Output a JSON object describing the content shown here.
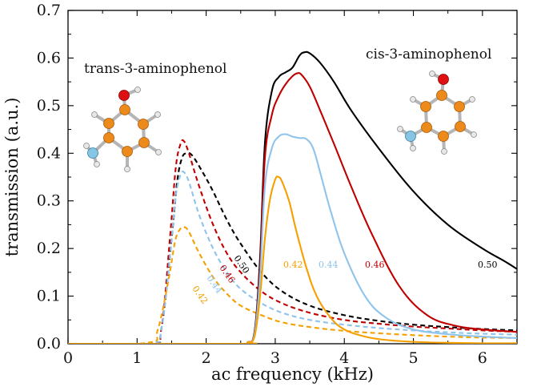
{
  "chart_data": {
    "type": "line",
    "title": "",
    "xlabel": "ac frequency (kHz)",
    "ylabel": "transmission (a.u.)",
    "xlim": [
      0,
      6.5
    ],
    "ylim": [
      0,
      0.7
    ],
    "xticks": [
      "0",
      "1",
      "2",
      "3",
      "4",
      "5",
      "6"
    ],
    "yticks": [
      "0.0",
      "0.1",
      "0.2",
      "0.3",
      "0.4",
      "0.5",
      "0.6",
      "0.7"
    ],
    "grid": false,
    "annotations": {
      "trans": "trans-3-aminophenol",
      "cis": "cis-3-aminophenol"
    },
    "series": [
      {
        "name": "trans 0.50",
        "label": "0.50",
        "isomer": "trans",
        "style": "dashed",
        "color": "#000000",
        "x": [
          0.0,
          1.2,
          1.35,
          1.5,
          1.58,
          1.65,
          1.72,
          1.8,
          1.95,
          2.1,
          2.3,
          2.5,
          2.8,
          3.1,
          3.5,
          4.0,
          4.5,
          5.0,
          5.5,
          6.0,
          6.5
        ],
        "y": [
          0.0,
          0.002,
          0.03,
          0.22,
          0.34,
          0.39,
          0.4,
          0.395,
          0.36,
          0.32,
          0.26,
          0.21,
          0.15,
          0.11,
          0.08,
          0.06,
          0.048,
          0.04,
          0.035,
          0.031,
          0.028
        ]
      },
      {
        "name": "trans 0.46",
        "label": "0.46",
        "isomer": "trans",
        "style": "dashed",
        "color": "#c00000",
        "x": [
          0.0,
          1.2,
          1.35,
          1.48,
          1.56,
          1.63,
          1.68,
          1.75,
          1.9,
          2.1,
          2.3,
          2.5,
          2.8,
          3.1,
          3.5,
          4.0,
          4.5,
          5.0,
          5.5,
          6.0,
          6.5
        ],
        "y": [
          0.0,
          0.002,
          0.03,
          0.23,
          0.37,
          0.42,
          0.425,
          0.4,
          0.33,
          0.25,
          0.19,
          0.15,
          0.11,
          0.085,
          0.065,
          0.05,
          0.042,
          0.036,
          0.032,
          0.028,
          0.025
        ]
      },
      {
        "name": "trans 0.44",
        "label": "0.44",
        "isomer": "trans",
        "style": "dashed",
        "color": "#8ec3ec",
        "x": [
          0.0,
          1.2,
          1.35,
          1.48,
          1.56,
          1.63,
          1.68,
          1.75,
          1.9,
          2.1,
          2.3,
          2.5,
          2.8,
          3.1,
          3.5,
          4.0,
          4.5,
          5.0,
          5.5,
          6.0,
          6.5
        ],
        "y": [
          0.0,
          0.002,
          0.03,
          0.19,
          0.31,
          0.355,
          0.36,
          0.34,
          0.27,
          0.2,
          0.15,
          0.115,
          0.085,
          0.065,
          0.05,
          0.04,
          0.033,
          0.028,
          0.024,
          0.021,
          0.019
        ]
      },
      {
        "name": "trans 0.42",
        "label": "0.42",
        "isomer": "trans",
        "style": "dashed",
        "color": "#f5a000",
        "x": [
          0.0,
          1.15,
          1.3,
          1.45,
          1.55,
          1.62,
          1.68,
          1.75,
          1.9,
          2.1,
          2.3,
          2.5,
          2.8,
          3.1,
          3.5,
          4.0,
          4.5,
          5.0,
          5.5,
          6.0,
          6.5
        ],
        "y": [
          0.0,
          0.002,
          0.03,
          0.13,
          0.215,
          0.24,
          0.245,
          0.235,
          0.19,
          0.14,
          0.105,
          0.08,
          0.06,
          0.045,
          0.035,
          0.027,
          0.022,
          0.018,
          0.015,
          0.013,
          0.012
        ]
      },
      {
        "name": "cis 0.50",
        "label": "0.50",
        "isomer": "cis",
        "style": "solid",
        "color": "#000000",
        "x": [
          0.0,
          2.5,
          2.6,
          2.7,
          2.78,
          2.85,
          2.95,
          3.05,
          3.15,
          3.25,
          3.35,
          3.42,
          3.5,
          3.65,
          3.85,
          4.1,
          4.5,
          5.0,
          5.5,
          6.0,
          6.3,
          6.5
        ],
        "y": [
          0.0,
          0.0,
          0.003,
          0.025,
          0.18,
          0.42,
          0.53,
          0.56,
          0.57,
          0.58,
          0.605,
          0.612,
          0.61,
          0.59,
          0.55,
          0.49,
          0.41,
          0.32,
          0.25,
          0.2,
          0.175,
          0.157
        ]
      },
      {
        "name": "cis 0.46",
        "label": "0.46",
        "isomer": "cis",
        "style": "solid",
        "color": "#c00000",
        "x": [
          0.0,
          2.5,
          2.6,
          2.7,
          2.78,
          2.85,
          2.95,
          3.05,
          3.15,
          3.25,
          3.32,
          3.38,
          3.5,
          3.65,
          3.85,
          4.1,
          4.4,
          4.8,
          5.2,
          5.6,
          6.0,
          6.5
        ],
        "y": [
          0.0,
          0.0,
          0.003,
          0.022,
          0.16,
          0.39,
          0.48,
          0.52,
          0.545,
          0.562,
          0.568,
          0.565,
          0.54,
          0.49,
          0.42,
          0.33,
          0.23,
          0.12,
          0.06,
          0.038,
          0.03,
          0.025
        ]
      },
      {
        "name": "cis 0.44",
        "label": "0.44",
        "isomer": "cis",
        "style": "solid",
        "color": "#8ec3ec",
        "x": [
          0.0,
          2.5,
          2.6,
          2.7,
          2.78,
          2.85,
          2.95,
          3.05,
          3.15,
          3.25,
          3.35,
          3.45,
          3.55,
          3.65,
          3.8,
          4.0,
          4.3,
          4.6,
          5.0,
          5.5,
          6.0,
          6.5
        ],
        "y": [
          0.0,
          0.0,
          0.003,
          0.02,
          0.14,
          0.33,
          0.41,
          0.435,
          0.44,
          0.435,
          0.432,
          0.43,
          0.41,
          0.36,
          0.28,
          0.19,
          0.1,
          0.055,
          0.03,
          0.02,
          0.015,
          0.012
        ]
      },
      {
        "name": "cis 0.42",
        "label": "0.42",
        "isomer": "cis",
        "style": "solid",
        "color": "#f5a000",
        "x": [
          0.0,
          2.5,
          2.6,
          2.7,
          2.78,
          2.85,
          2.92,
          3.0,
          3.05,
          3.1,
          3.2,
          3.3,
          3.45,
          3.6,
          3.8,
          4.0,
          4.3,
          4.6,
          5.0,
          5.5,
          6.0,
          6.5
        ],
        "y": [
          0.0,
          0.0,
          0.003,
          0.015,
          0.1,
          0.22,
          0.3,
          0.345,
          0.35,
          0.34,
          0.3,
          0.24,
          0.16,
          0.1,
          0.055,
          0.03,
          0.015,
          0.008,
          0.004,
          0.002,
          0.001,
          0.001
        ]
      }
    ]
  }
}
